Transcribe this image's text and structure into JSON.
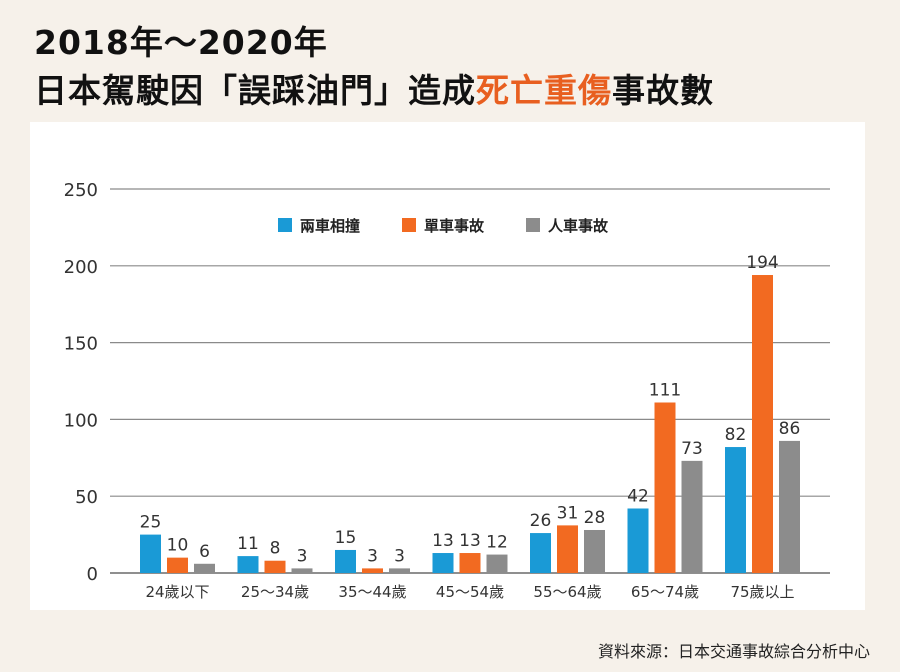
{
  "title": {
    "line1": "2018年～2020年",
    "line2_prefix": "日本駕駛因「誤踩油門」造成",
    "line2_accent": "死亡重傷",
    "line2_suffix": "事故數"
  },
  "source": "資料來源：日本交通事故綜合分析中心",
  "colors": {
    "accent": "#e85f20",
    "series": [
      "#1a9ad6",
      "#f26a21",
      "#8c8c8c"
    ]
  },
  "chart_data": {
    "type": "bar",
    "categories": [
      "24歲以下",
      "25～34歲",
      "35～44歲",
      "45～54歲",
      "55～64歲",
      "65～74歲",
      "75歲以上"
    ],
    "series": [
      {
        "name": "兩車相撞",
        "values": [
          25,
          11,
          15,
          13,
          26,
          42,
          82
        ]
      },
      {
        "name": "單車事故",
        "values": [
          10,
          8,
          3,
          13,
          31,
          111,
          194
        ]
      },
      {
        "name": "人車事故",
        "values": [
          6,
          3,
          3,
          12,
          28,
          73,
          86
        ]
      }
    ],
    "ylim": [
      0,
      250
    ],
    "yticks": [
      0,
      50,
      100,
      150,
      200,
      250
    ],
    "grid": true,
    "legend": "top-center",
    "data_labels": true
  }
}
